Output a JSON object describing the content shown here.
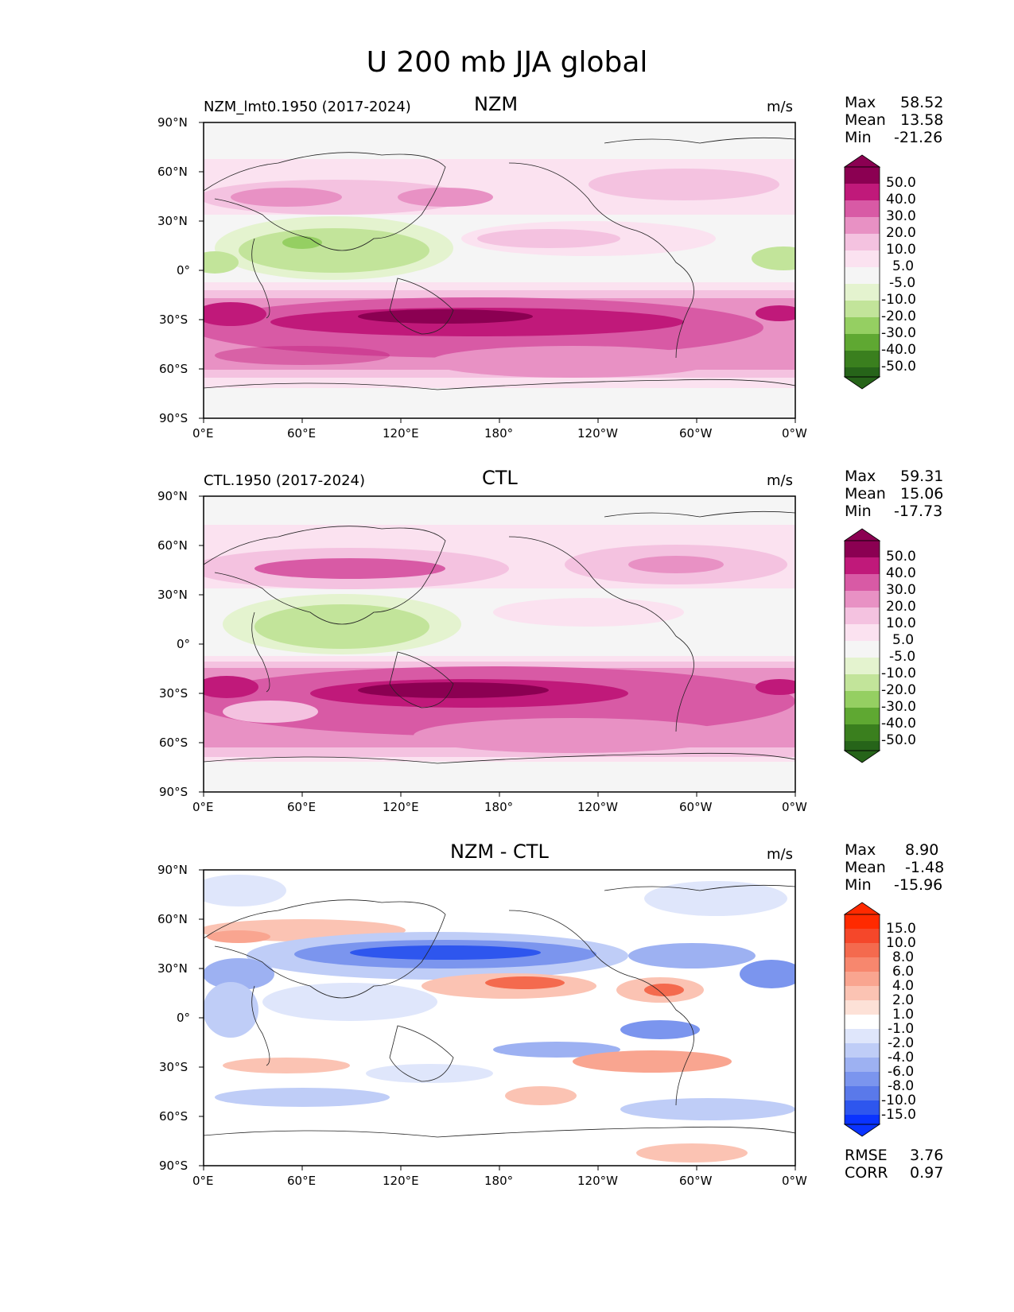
{
  "title": "U 200 mb JJA global",
  "unit": "m/s",
  "axes": {
    "lat_labels": [
      "90°N",
      "60°N",
      "30°N",
      "0°",
      "30°S",
      "60°S",
      "90°S"
    ],
    "lon_labels": [
      "0°E",
      "60°E",
      "120°E",
      "180°",
      "120°W",
      "60°W",
      "0°W"
    ]
  },
  "panels": [
    {
      "left_title": "NZM_lmt0.1950 (2017-2024)",
      "center_title": "NZM",
      "unit": "m/s",
      "stats": {
        "max_label": "Max",
        "max": "58.52",
        "mean_label": "Mean",
        "mean": "13.58",
        "min_label": "Min",
        "min": "-21.26"
      },
      "colorbar_labels": [
        "50.0",
        "40.0",
        "30.0",
        "20.0",
        "10.0",
        "5.0",
        "-5.0",
        "-10.0",
        "-20.0",
        "-30.0",
        "-40.0",
        "-50.0"
      ],
      "colors": [
        "#8b0052",
        "#c0197a",
        "#d85aa5",
        "#e891c4",
        "#f4c2e0",
        "#fbe2f0",
        "#f5f5f5",
        "#e4f3cf",
        "#c2e49a",
        "#95cf62",
        "#5fa832",
        "#3a7f1e",
        "#266419"
      ]
    },
    {
      "left_title": "CTL.1950 (2017-2024)",
      "center_title": "CTL",
      "unit": "m/s",
      "stats": {
        "max_label": "Max",
        "max": "59.31",
        "mean_label": "Mean",
        "mean": "15.06",
        "min_label": "Min",
        "min": "-17.73"
      },
      "colorbar_labels": [
        "50.0",
        "40.0",
        "30.0",
        "20.0",
        "10.0",
        "5.0",
        "-5.0",
        "-10.0",
        "-20.0",
        "-30.0",
        "-40.0",
        "-50.0"
      ],
      "colors": [
        "#8b0052",
        "#c0197a",
        "#d85aa5",
        "#e891c4",
        "#f4c2e0",
        "#fbe2f0",
        "#f5f5f5",
        "#e4f3cf",
        "#c2e49a",
        "#95cf62",
        "#5fa832",
        "#3a7f1e",
        "#266419"
      ]
    },
    {
      "left_title": "",
      "center_title": "NZM - CTL",
      "unit": "m/s",
      "stats": {
        "max_label": "Max",
        "max": "8.90",
        "mean_label": "Mean",
        "mean": "-1.48",
        "min_label": "Min",
        "min": "-15.96"
      },
      "colorbar_labels": [
        "15.0",
        "10.0",
        "8.0",
        "6.0",
        "4.0",
        "2.0",
        "1.0",
        "-1.0",
        "-2.0",
        "-4.0",
        "-6.0",
        "-8.0",
        "-10.0",
        "-15.0"
      ],
      "colors": [
        "#ff2a00",
        "#f5472a",
        "#f46a4e",
        "#f7876e",
        "#f9a590",
        "#fbc3b3",
        "#fde1d7",
        "#ffffff",
        "#dfe6fb",
        "#bfcdf7",
        "#9db1f2",
        "#7b95ee",
        "#5a79ea",
        "#2e56ee",
        "#0a33ff"
      ],
      "rmse_label": "RMSE",
      "rmse": "3.76",
      "corr_label": "CORR",
      "corr": "0.97"
    }
  ]
}
